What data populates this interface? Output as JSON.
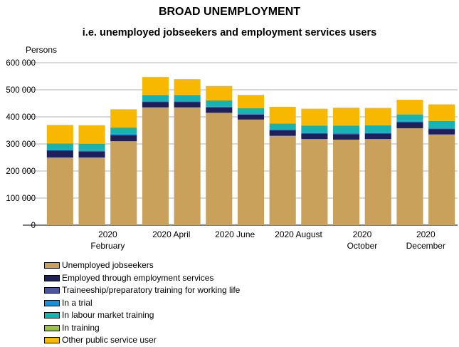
{
  "chart_data": {
    "type": "bar",
    "stacked": true,
    "title": "BROAD UNEMPLOYMENT",
    "subtitle": "i.e. unemployed jobseekers and employment services users",
    "ylabel": "Persons",
    "ylim": [
      0,
      600000
    ],
    "yticks": [
      "0",
      "100 000",
      "200 000",
      "300 000",
      "400 000",
      "500 000",
      "600 000"
    ],
    "ytick_values": [
      0,
      100000,
      200000,
      300000,
      400000,
      500000,
      600000
    ],
    "grid": true,
    "categories": [
      "2020-01",
      "2020-02",
      "2020-03",
      "2020-04",
      "2020-05",
      "2020-06",
      "2020-07",
      "2020-08",
      "2020-09",
      "2020-10",
      "2020-11",
      "2020-12",
      "2021-01"
    ],
    "xtick_labels": [
      {
        "category_index": 1,
        "line1": "2020",
        "line2": "February"
      },
      {
        "category_index": 3,
        "line1": "2020 April",
        "line2": ""
      },
      {
        "category_index": 5,
        "line1": "2020 June",
        "line2": ""
      },
      {
        "category_index": 7,
        "line1": "2020 August",
        "line2": ""
      },
      {
        "category_index": 9,
        "line1": "2020",
        "line2": "October"
      },
      {
        "category_index": 11,
        "line1": "2020",
        "line2": "December"
      }
    ],
    "legend_position": "bottom-left",
    "series": [
      {
        "name": "Unemployed jobseekers",
        "color": "#c9a15a",
        "values": [
          250000,
          250000,
          310000,
          435000,
          435000,
          415000,
          390000,
          330000,
          318000,
          316000,
          318000,
          358000,
          335000
        ]
      },
      {
        "name": "Employed through employment services",
        "color": "#1f1f5a",
        "values": [
          25000,
          22000,
          22000,
          20000,
          20000,
          20000,
          18000,
          20000,
          20000,
          20000,
          20000,
          22000,
          20000
        ]
      },
      {
        "name": "Traineeship/preparatory training for working life",
        "color": "#4c55a0",
        "values": [
          2000,
          2000,
          2000,
          2000,
          2000,
          2000,
          2000,
          2000,
          2000,
          2000,
          2000,
          2000,
          2000
        ]
      },
      {
        "name": "In a trial",
        "color": "#1b8fd0",
        "values": [
          3000,
          3000,
          3000,
          2000,
          2000,
          2000,
          2000,
          3000,
          3000,
          3000,
          3000,
          3000,
          3000
        ]
      },
      {
        "name": "In labour market training",
        "color": "#17b3b0",
        "values": [
          22000,
          24000,
          24000,
          22000,
          22000,
          22000,
          20000,
          20000,
          25000,
          27000,
          26000,
          24000,
          25000
        ]
      },
      {
        "name": "In training",
        "color": "#9bc53d",
        "values": [
          1000,
          1000,
          1000,
          1000,
          1000,
          1000,
          1000,
          1000,
          1000,
          1000,
          1000,
          1000,
          1000
        ]
      },
      {
        "name": "Other public service user",
        "color": "#f9b800",
        "values": [
          67000,
          67000,
          66000,
          65000,
          57000,
          52000,
          48000,
          61000,
          61000,
          65000,
          63000,
          53000,
          60000
        ]
      }
    ]
  }
}
